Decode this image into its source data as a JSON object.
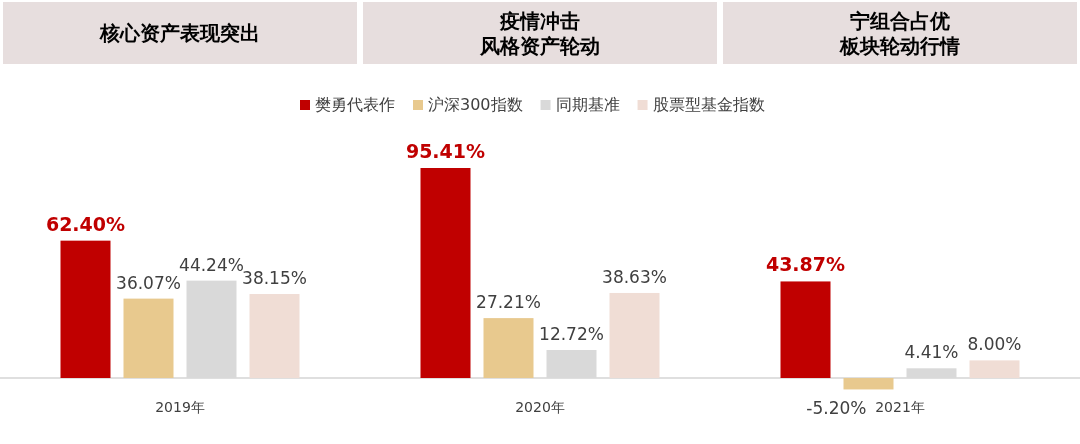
{
  "chart_data": {
    "type": "bar",
    "categories": [
      "2019年",
      "2020年",
      "2021年"
    ],
    "series": [
      {
        "name": "樊勇代表作",
        "color": "#c00000",
        "values": [
          62.4,
          95.41,
          43.87
        ],
        "value_labels": [
          "62.40%",
          "95.41%",
          "43.87%"
        ]
      },
      {
        "name": "沪深300指数",
        "color": "#e8c98e",
        "values": [
          36.07,
          27.21,
          -5.2
        ],
        "value_labels": [
          "36.07%",
          "27.21%",
          "-5.20%"
        ]
      },
      {
        "name": "同期基准",
        "color": "#d9d9d9",
        "values": [
          44.24,
          12.72,
          4.41
        ],
        "value_labels": [
          "44.24%",
          "12.72%",
          "4.41%"
        ]
      },
      {
        "name": "股票型基金指数",
        "color": "#f0ddd5",
        "values": [
          38.15,
          38.63,
          8.0
        ],
        "value_labels": [
          "38.15%",
          "38.63%",
          "8.00%"
        ]
      }
    ],
    "annotations": [
      "核心资产表现突出",
      "疫情冲击",
      "风格资产轮动",
      "宁组合占优",
      "板块轮动行情"
    ],
    "legend": "top"
  }
}
